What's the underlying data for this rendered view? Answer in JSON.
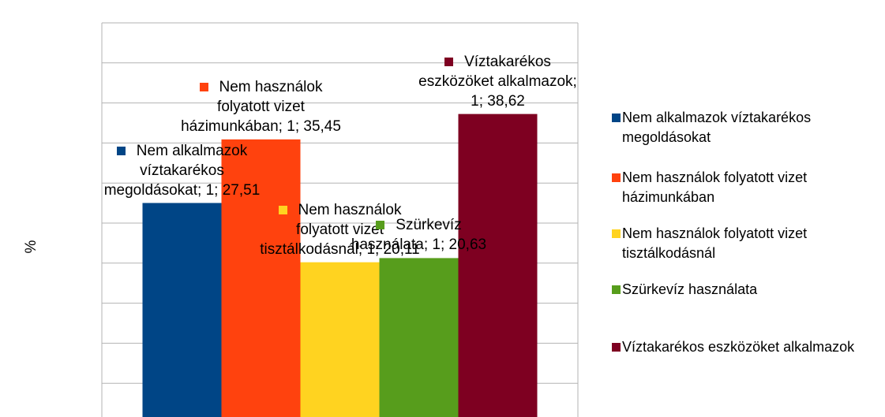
{
  "chart_data": {
    "type": "bar",
    "y_label": "%",
    "categories": [
      "1"
    ],
    "series": [
      {
        "name": "Nem alkalmazok víztakarékos megoldásokat",
        "color": "#004586",
        "values": [
          27.51
        ],
        "value_labels": [
          "27,51"
        ]
      },
      {
        "name": "Nem használok folyatott vizet házimunkában",
        "color": "#ff420e",
        "values": [
          35.45
        ],
        "value_labels": [
          "35,45"
        ]
      },
      {
        "name": "Nem használok folyatott vizet tisztálkodásnál",
        "color": "#ffd320",
        "values": [
          20.11
        ],
        "value_labels": [
          "20,11"
        ]
      },
      {
        "name": "Szürkevíz használata",
        "color": "#579d1c",
        "values": [
          20.63
        ],
        "value_labels": [
          "20,63"
        ]
      },
      {
        "name": "Víztakarékos eszközöket alkalmazok",
        "color": "#7e0021",
        "values": [
          38.62
        ],
        "value_labels": [
          "38,62"
        ]
      }
    ],
    "ylim": [
      0,
      50
    ],
    "yticks": [
      0,
      5,
      10,
      15,
      20,
      25,
      30,
      35,
      40,
      45,
      50
    ],
    "grid": true,
    "legend": "right"
  }
}
